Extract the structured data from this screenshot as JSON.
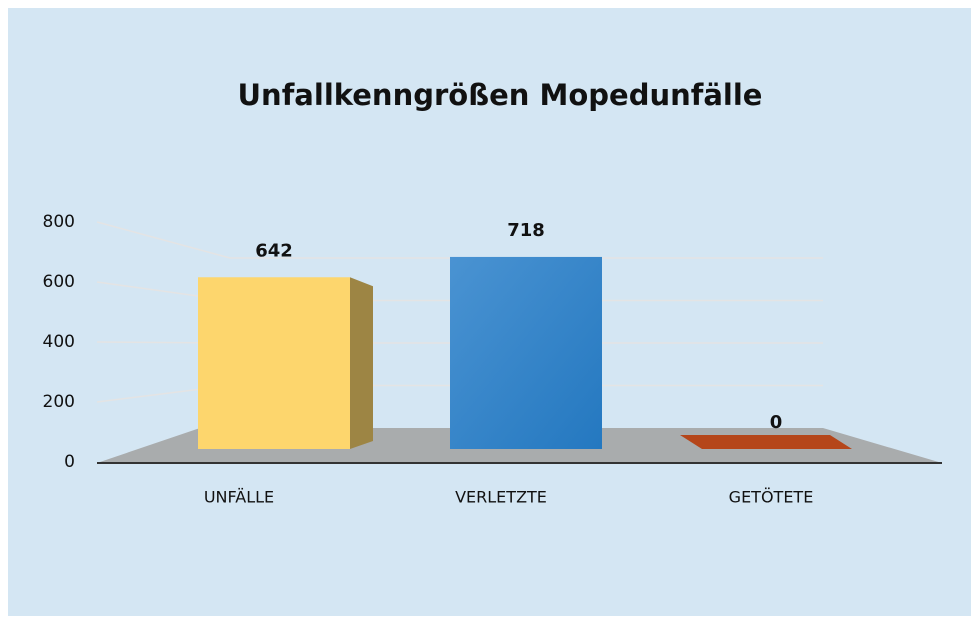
{
  "chart_data": {
    "type": "bar3d",
    "title": "Unfallkenngrößen Mopedunfälle",
    "categories": [
      "UNFÄLLE",
      "VERLETZTE",
      "GETÖTETE"
    ],
    "values": [
      642,
      718,
      0
    ],
    "colors": [
      "#fdd66d",
      "#2f80c6",
      "#b5461a"
    ],
    "ylim": [
      0,
      800
    ],
    "yticks": [
      0,
      200,
      400,
      600,
      800
    ],
    "grid": true
  }
}
